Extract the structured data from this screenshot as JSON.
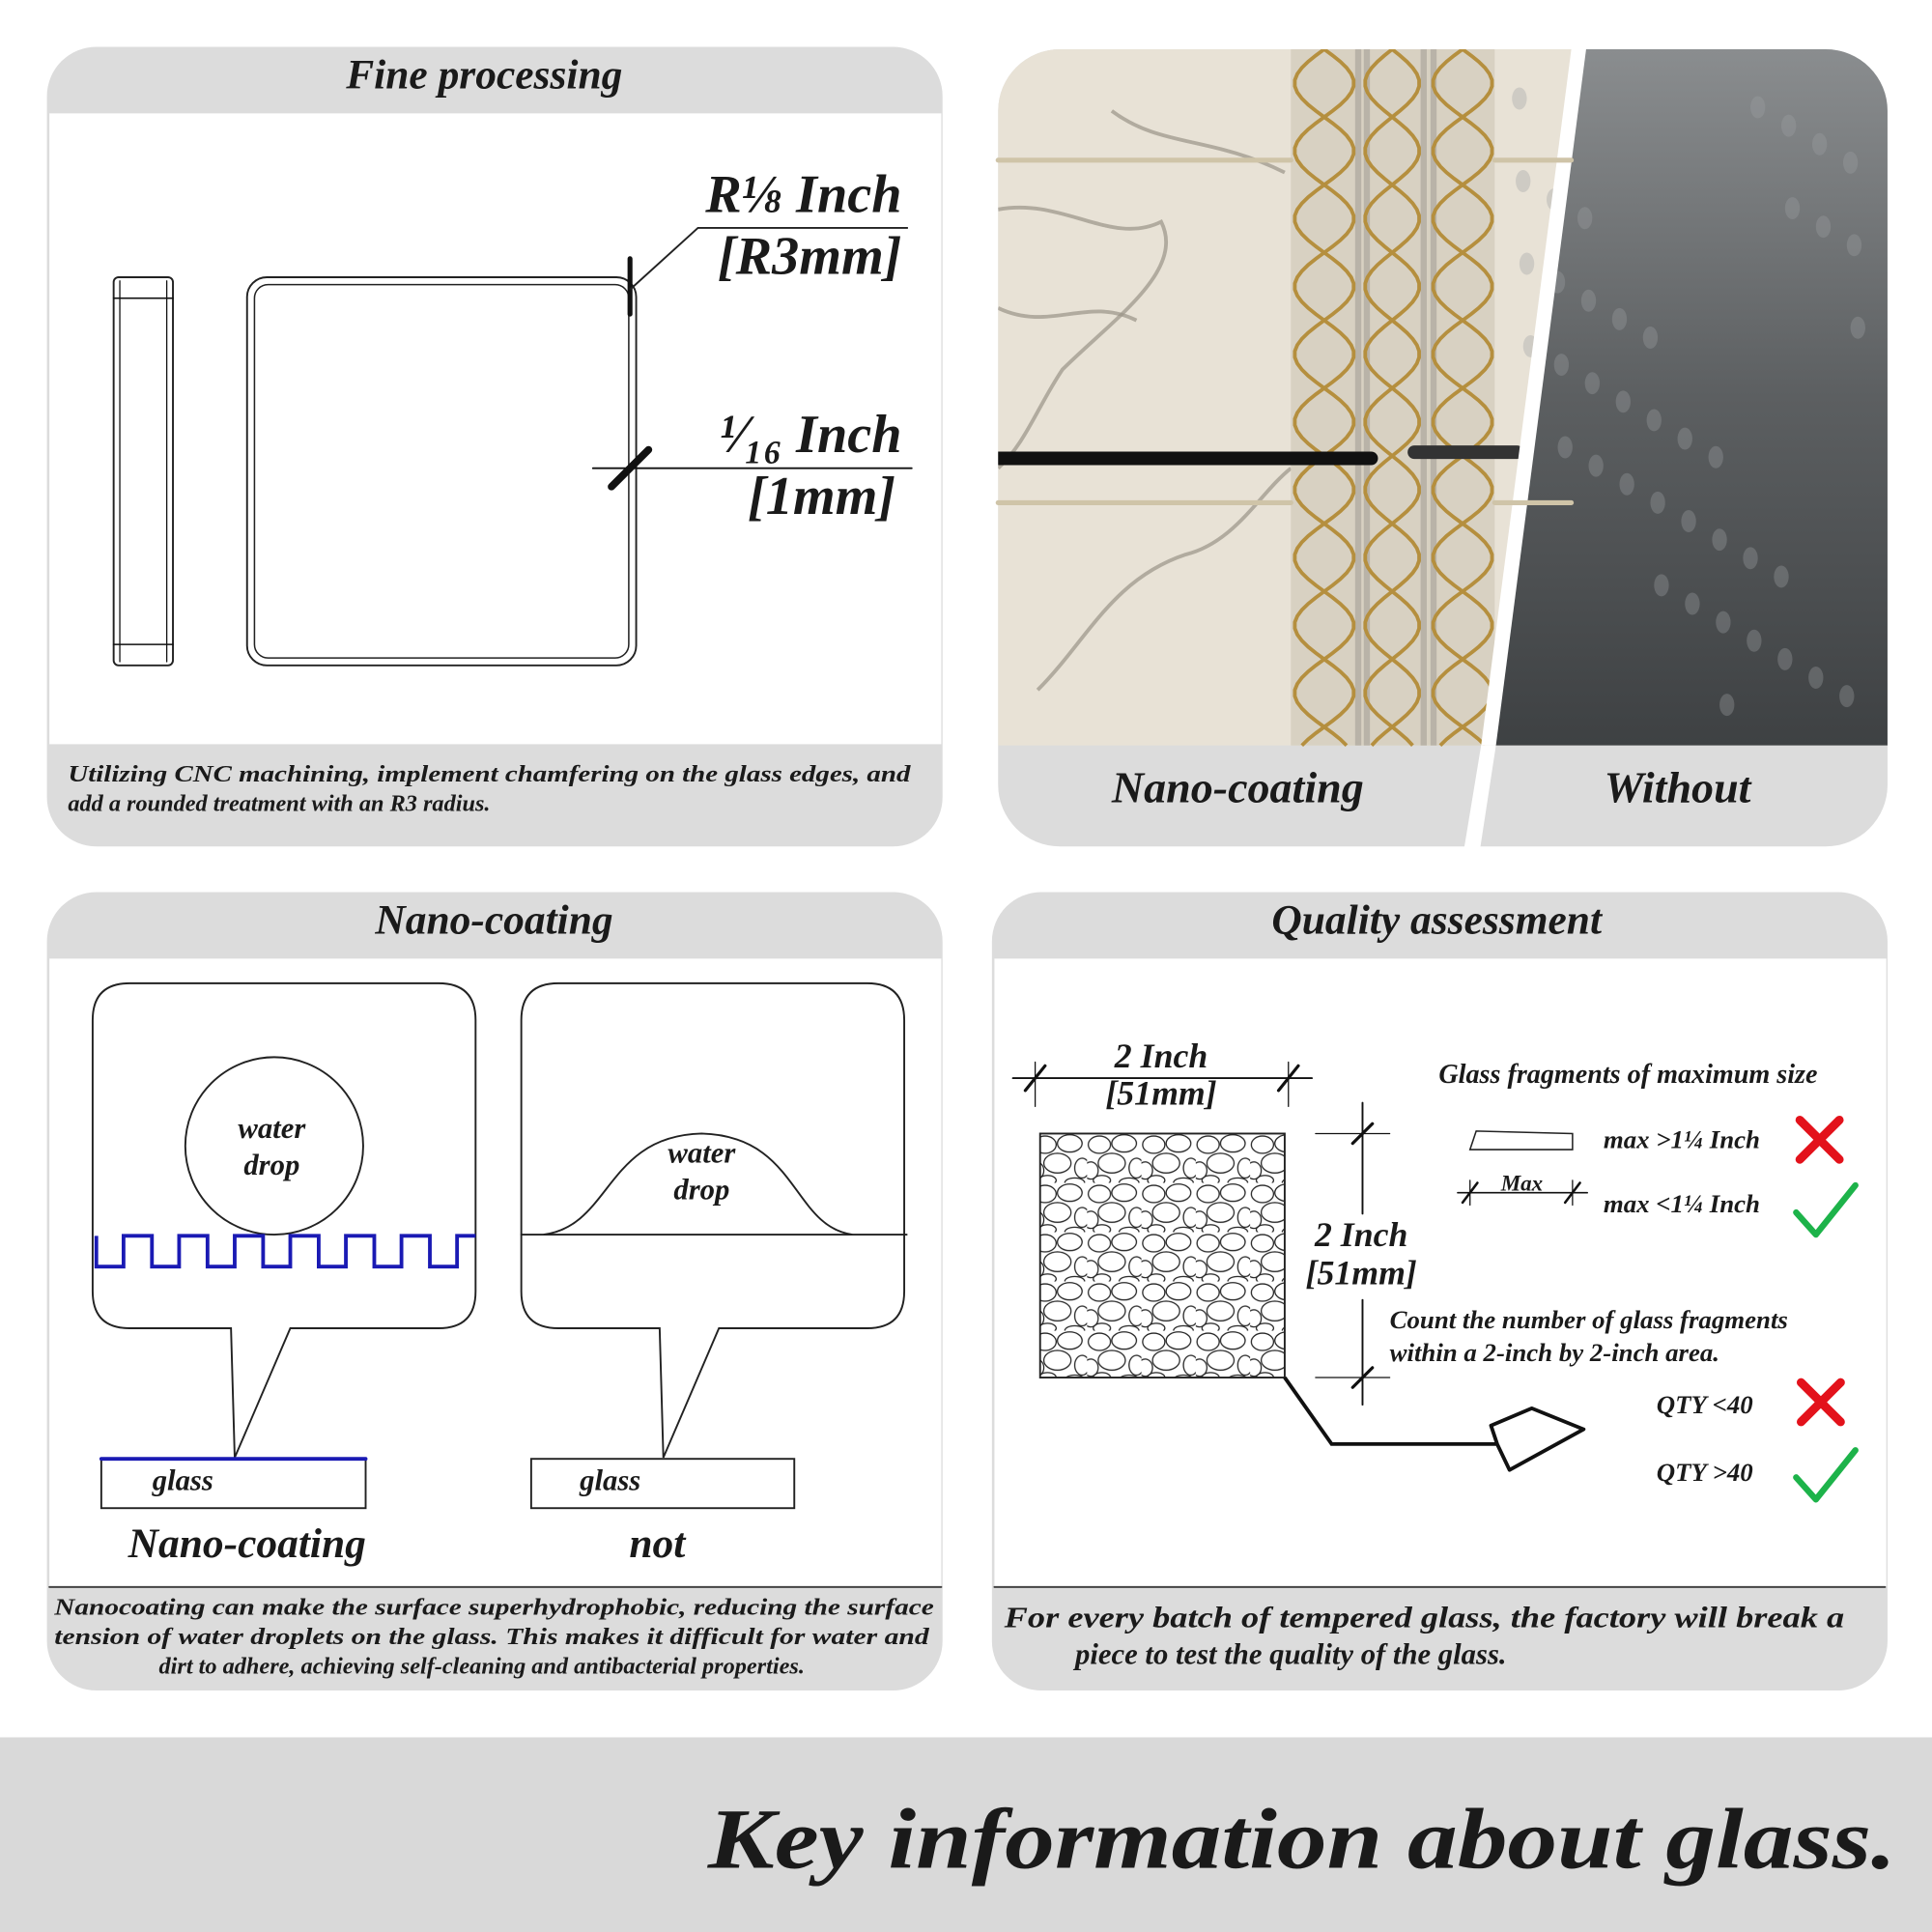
{
  "panels": {
    "fine_processing": {
      "title": "Fine processing",
      "radius": [
        "R⅛ Inch",
        "[R3mm]"
      ],
      "thickness": [
        "¹⁄₁₆ Inch",
        "[1mm]"
      ],
      "caption": [
        "Utilizing CNC machining, implement chamfering on the glass edges, and",
        "add a rounded treatment with an R3 radius."
      ]
    },
    "comparison": {
      "left_label": "Nano-coating",
      "right_label": "Without"
    },
    "nano_coating": {
      "title": "Nano-coating",
      "coated": {
        "drop": [
          "water",
          "drop"
        ],
        "base": "glass",
        "label": "Nano-coating"
      },
      "uncoated": {
        "drop": [
          "water",
          "drop"
        ],
        "base": "glass",
        "label": "not"
      },
      "caption": [
        "Nanocoating can make the surface superhydrophobic, reducing the surface",
        "tension of water droplets on the glass. This makes it difficult for water and",
        "dirt to adhere, achieving self-cleaning and antibacterial properties."
      ]
    },
    "quality": {
      "title": "Quality assessment",
      "width": [
        "2 Inch",
        "[51mm]"
      ],
      "height": [
        "2 Inch",
        "[51mm]"
      ],
      "fragments_title": "Glass fragments of maximum size",
      "max_label": "Max",
      "fragment_rules": [
        "max >1¼ Inch",
        "max <1¼ Inch"
      ],
      "count_text": [
        "Count the number of glass fragments",
        "within a 2-inch by 2-inch area."
      ],
      "qty_rules": [
        "QTY <40",
        "QTY >40"
      ],
      "caption": [
        "For every batch of tempered glass, the factory will break a",
        "piece to test the quality of the glass."
      ]
    }
  },
  "footer": {
    "title": "Key information about glass."
  }
}
